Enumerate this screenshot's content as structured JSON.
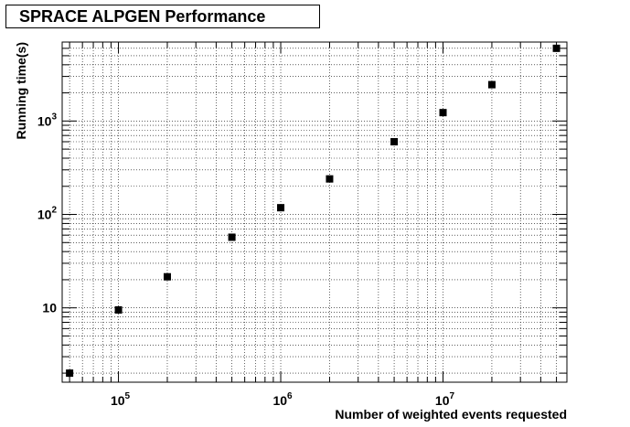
{
  "chart_data": {
    "type": "scatter",
    "title": "SPRACE ALPGEN Performance",
    "xlabel": "Number of weighted events requested",
    "ylabel": "Running time(s)",
    "x_scale": "log",
    "y_scale": "log",
    "xlim": [
      45000,
      58000000
    ],
    "ylim": [
      1.6,
      7000
    ],
    "grid": true,
    "x_ticks": [
      {
        "value": 100000,
        "base": "10",
        "exp": "5"
      },
      {
        "value": 1000000,
        "base": "10",
        "exp": "6"
      },
      {
        "value": 10000000,
        "base": "10",
        "exp": "7"
      }
    ],
    "y_ticks": [
      {
        "value": 10,
        "base": "10",
        "exp": ""
      },
      {
        "value": 100,
        "base": "10",
        "exp": "2"
      },
      {
        "value": 1000,
        "base": "10",
        "exp": "3"
      }
    ],
    "series": [
      {
        "marker": "square",
        "color": "#000000",
        "x": [
          50000,
          100000,
          200000,
          500000,
          1000000,
          2000000,
          5000000,
          10000000,
          20000000,
          50000000
        ],
        "y": [
          2,
          9.5,
          21.5,
          57,
          118,
          240,
          600,
          1230,
          2450,
          6000
        ]
      }
    ]
  }
}
